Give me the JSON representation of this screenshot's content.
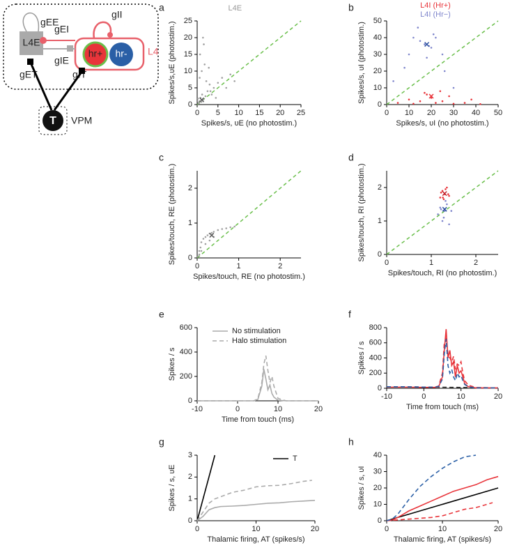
{
  "diagram": {
    "labels": {
      "gEE": "gEE",
      "gEI": "gEI",
      "gIE": "gIE",
      "gET": "gET",
      "gIT": "gIT",
      "gII": "gII",
      "L4E": "L4E",
      "hr_plus": "hr+",
      "hr_minus": "hr-",
      "L4": "L4",
      "T": "T",
      "VPM": "VPM"
    }
  },
  "chart_data": [
    {
      "type": "scatter",
      "panel": "a",
      "title": "L4E",
      "title_color": "#999999",
      "xlabel": "Spikes/s, υE (no photostim.)",
      "ylabel": "Spikes/s,υE (photostim.)",
      "xlim": [
        0,
        25
      ],
      "ylim": [
        0,
        25
      ],
      "xticks": [
        0,
        5,
        10,
        15,
        20,
        25
      ],
      "yticks": [
        0,
        5,
        10,
        15,
        20,
        25
      ],
      "diagonal": true,
      "diagonal_color": "#6abf4b",
      "series": [
        {
          "color": "#a0a0a0",
          "x": [
            0.3,
            0.5,
            0.8,
            1,
            1.2,
            1.5,
            2,
            2.5,
            3,
            3.5,
            4,
            0.6,
            1.1,
            1.8,
            2.2,
            0.4,
            5,
            6,
            7,
            8,
            9,
            0.7,
            1.4,
            2.8,
            3.2,
            4.5,
            0.2,
            1.6
          ],
          "values": [
            0.5,
            1,
            2,
            0.8,
            3,
            1.5,
            2.5,
            4,
            6,
            3,
            5,
            8,
            10,
            12,
            7,
            0.3,
            6.5,
            8,
            5,
            9,
            7,
            15,
            20,
            11,
            4,
            2,
            1.8,
            18
          ]
        },
        {
          "color": "#555555",
          "marker": "x",
          "x": [
            1.1
          ],
          "values": [
            1.4
          ]
        }
      ]
    },
    {
      "type": "scatter",
      "panel": "b",
      "legend": "above",
      "xlabel": "Spikes/s, υI (no photostim.)",
      "ylabel": "Spikes/s, υI (photostim.)",
      "xlim": [
        0,
        50
      ],
      "ylim": [
        0,
        50
      ],
      "xticks": [
        0,
        10,
        20,
        30,
        40,
        50
      ],
      "yticks": [
        0,
        10,
        20,
        30,
        40,
        50
      ],
      "diagonal": true,
      "diagonal_color": "#6abf4b",
      "series": [
        {
          "name": "L4I (Hr+)",
          "color": "#e8343a",
          "x": [
            5,
            10,
            12,
            15,
            18,
            20,
            22,
            25,
            28,
            30,
            35,
            38,
            42,
            17,
            24
          ],
          "values": [
            1,
            3,
            0.5,
            2,
            6,
            4,
            1,
            2,
            5,
            0.5,
            1,
            3,
            0.3,
            7,
            8
          ]
        },
        {
          "name": "L4I (Hr−)",
          "color": "#7f86cc",
          "x": [
            3,
            8,
            10,
            12,
            15,
            17,
            19,
            20,
            22,
            25,
            14,
            18,
            21,
            26,
            30
          ],
          "values": [
            14,
            22,
            30,
            40,
            38,
            36,
            35,
            34,
            40,
            30,
            46,
            28,
            42,
            20,
            10
          ]
        },
        {
          "color": "#e8343a",
          "marker": "x",
          "x": [
            20
          ],
          "values": [
            5
          ]
        },
        {
          "color": "#2a4fa0",
          "marker": "x",
          "x": [
            18
          ],
          "values": [
            36
          ]
        }
      ]
    },
    {
      "type": "scatter",
      "panel": "c",
      "xlabel": "Spikes/touch, RE (no photostim.)",
      "ylabel": "Spikes/touch, RE (photostim.)",
      "xlim": [
        0,
        2.5
      ],
      "ylim": [
        0,
        2.5
      ],
      "xticks": [
        0,
        1,
        2
      ],
      "yticks": [
        0,
        1,
        2
      ],
      "diagonal": true,
      "diagonal_color": "#6abf4b",
      "series": [
        {
          "color": "#a0a0a0",
          "x": [
            0.02,
            0.05,
            0.08,
            0.1,
            0.15,
            0.2,
            0.25,
            0.3,
            0.35,
            0.4,
            0.5,
            0.6,
            0.7,
            0.8,
            0.9,
            0.1,
            0.2,
            0.3,
            0.05,
            0.4
          ],
          "values": [
            0.05,
            0.2,
            0.3,
            0.45,
            0.55,
            0.6,
            0.65,
            0.7,
            0.72,
            0.75,
            0.8,
            0.83,
            0.85,
            0.88,
            0.9,
            0.2,
            0.4,
            0.5,
            0.1,
            0.6
          ]
        },
        {
          "color": "#555555",
          "marker": "x",
          "x": [
            0.35
          ],
          "values": [
            0.65
          ]
        }
      ]
    },
    {
      "type": "scatter",
      "panel": "d",
      "xlabel": "Spikes/touch, RI (no photostim.)",
      "ylabel": "Spikes/touch, RI (photostim.)",
      "xlim": [
        0,
        2.5
      ],
      "ylim": [
        0,
        2.5
      ],
      "xticks": [
        0,
        1,
        2
      ],
      "yticks": [
        0,
        1,
        2
      ],
      "diagonal": true,
      "diagonal_color": "#6abf4b",
      "series": [
        {
          "color": "#e8343a",
          "x": [
            1.2,
            1.25,
            1.3,
            1.35,
            1.4,
            1.22,
            1.28,
            1.32,
            1.38,
            1.26
          ],
          "values": [
            1.7,
            1.9,
            1.8,
            2.0,
            1.75,
            1.85,
            1.65,
            1.95,
            1.8,
            1.7
          ]
        },
        {
          "color": "#7f86cc",
          "x": [
            1.15,
            1.2,
            1.25,
            1.3,
            1.35,
            1.4,
            1.45,
            1.28,
            1.32,
            1.22
          ],
          "values": [
            1.2,
            1.4,
            1.0,
            1.3,
            1.5,
            0.9,
            1.3,
            1.1,
            1.6,
            1.35
          ]
        },
        {
          "color": "#c0202a",
          "marker": "x",
          "x": [
            1.3
          ],
          "values": [
            1.82
          ]
        },
        {
          "color": "#2a4fa0",
          "marker": "x",
          "x": [
            1.3
          ],
          "values": [
            1.35
          ]
        }
      ]
    },
    {
      "type": "line",
      "panel": "e",
      "legend": "top-left",
      "xlabel": "Time from touch (ms)",
      "ylabel": "Spikes / s",
      "xlim": [
        -10,
        20
      ],
      "ylim": [
        0,
        600
      ],
      "xticks": [
        -10,
        0,
        10,
        20
      ],
      "yticks": [
        0,
        200,
        400,
        600
      ],
      "series": [
        {
          "name": "No stimulation",
          "color": "#aaaaaa",
          "x": [
            -10,
            -5,
            0,
            4,
            5,
            6,
            6.5,
            7,
            7.5,
            8,
            8.5,
            9,
            10,
            12,
            15,
            20
          ],
          "values": [
            0,
            0,
            0,
            0,
            10,
            120,
            260,
            180,
            90,
            130,
            60,
            30,
            5,
            0,
            0,
            0
          ]
        },
        {
          "name": "Halo stimulation",
          "color": "#aaaaaa",
          "dash": true,
          "x": [
            -10,
            -5,
            0,
            4,
            5,
            6,
            6.5,
            7,
            7.5,
            8,
            8.5,
            9,
            10,
            12,
            15,
            20
          ],
          "values": [
            0,
            0,
            0,
            0,
            15,
            150,
            300,
            370,
            250,
            150,
            200,
            120,
            20,
            0,
            0,
            0
          ]
        }
      ]
    },
    {
      "type": "line",
      "panel": "f",
      "xlabel": "Time from touch (ms)",
      "ylabel": "Spikes / s",
      "xlim": [
        -10,
        20
      ],
      "ylim": [
        0,
        800
      ],
      "xticks": [
        -10,
        0,
        10,
        20
      ],
      "yticks": [
        0,
        200,
        400,
        600,
        800
      ],
      "series": [
        {
          "color": "#333333",
          "dash": true,
          "x": [
            -10,
            -5,
            0,
            3,
            20
          ],
          "values": [
            20,
            20,
            15,
            15,
            5
          ]
        },
        {
          "color": "#e8343a",
          "x": [
            -10,
            -5,
            0,
            3,
            4,
            5,
            5.5,
            6,
            6.5,
            7,
            7.5,
            8,
            8.5,
            9,
            9.5,
            10,
            10.5,
            11,
            12,
            14,
            20
          ],
          "values": [
            15,
            15,
            12,
            12,
            20,
            150,
            500,
            780,
            400,
            500,
            300,
            350,
            150,
            300,
            200,
            230,
            150,
            60,
            20,
            5,
            5
          ]
        },
        {
          "color": "#e8343a",
          "dash": true,
          "x": [
            -10,
            -5,
            0,
            3,
            4,
            5,
            5.5,
            6,
            6.5,
            7,
            7.5,
            8,
            8.5,
            9,
            9.5,
            10,
            10.5,
            11,
            12,
            14,
            20
          ],
          "values": [
            20,
            20,
            15,
            15,
            30,
            200,
            600,
            650,
            450,
            400,
            350,
            420,
            250,
            320,
            300,
            350,
            200,
            100,
            40,
            10,
            5
          ]
        },
        {
          "color": "#2a5fa6",
          "dash": true,
          "x": [
            -10,
            -5,
            0,
            3,
            4,
            5,
            5.5,
            6,
            6.5,
            7,
            7.5,
            8,
            8.5,
            9,
            9.5,
            10,
            10.5,
            11,
            12,
            14,
            20
          ],
          "values": [
            20,
            20,
            15,
            15,
            25,
            120,
            450,
            650,
            300,
            200,
            250,
            150,
            100,
            200,
            150,
            170,
            100,
            50,
            20,
            5,
            5
          ]
        }
      ]
    },
    {
      "type": "line",
      "panel": "g",
      "legend": "top-right",
      "xlabel": "Thalamic firing, AT (spikes/s)",
      "ylabel": "Spikes / s, υE",
      "xlim": [
        0,
        20
      ],
      "ylim": [
        0,
        3
      ],
      "xticks": [
        0,
        10,
        20
      ],
      "yticks": [
        0,
        1,
        2,
        3
      ],
      "series": [
        {
          "name": "T",
          "color": "#000000",
          "x": [
            0,
            3
          ],
          "values": [
            0,
            3
          ]
        },
        {
          "color": "#aaaaaa",
          "x": [
            0,
            1,
            2,
            3,
            4,
            6,
            8,
            10,
            12,
            14,
            16,
            18,
            20
          ],
          "values": [
            0,
            0.2,
            0.5,
            0.6,
            0.65,
            0.67,
            0.7,
            0.75,
            0.8,
            0.82,
            0.87,
            0.9,
            0.93
          ]
        },
        {
          "color": "#aaaaaa",
          "dash": true,
          "x": [
            0,
            1,
            2,
            3,
            4,
            6,
            8,
            10,
            12,
            14,
            16,
            18,
            19.5
          ],
          "values": [
            0,
            0.4,
            0.8,
            1.0,
            1.1,
            1.3,
            1.4,
            1.55,
            1.6,
            1.62,
            1.7,
            1.8,
            1.85
          ]
        }
      ]
    },
    {
      "type": "line",
      "panel": "h",
      "xlabel": "Thalamic firing, AT (spikes/s)",
      "ylabel": "Spikes / s, υI",
      "xlim": [
        0,
        20
      ],
      "ylim": [
        0,
        40
      ],
      "xticks": [
        0,
        10,
        20
      ],
      "yticks": [
        0,
        10,
        20,
        30,
        40
      ],
      "series": [
        {
          "color": "#000000",
          "x": [
            0,
            20
          ],
          "values": [
            0,
            20
          ]
        },
        {
          "color": "#e8343a",
          "x": [
            0,
            1,
            2,
            4,
            6,
            8,
            10,
            12,
            14,
            16,
            18,
            20
          ],
          "values": [
            0,
            0.5,
            2,
            6,
            9,
            12,
            15,
            18,
            20,
            22,
            25,
            27
          ]
        },
        {
          "color": "#e8343a",
          "dash": true,
          "x": [
            0,
            1,
            2,
            4,
            6,
            8,
            10,
            12,
            14,
            16,
            18,
            19
          ],
          "values": [
            0,
            0.2,
            0.5,
            1,
            1.5,
            2,
            3,
            5,
            7,
            8,
            10,
            11
          ]
        },
        {
          "color": "#2a5fa6",
          "dash": true,
          "x": [
            0,
            1,
            2,
            4,
            6,
            8,
            10,
            12,
            14,
            16
          ],
          "values": [
            0,
            1,
            4,
            13,
            21,
            27,
            32,
            36,
            39,
            40
          ]
        }
      ]
    }
  ]
}
